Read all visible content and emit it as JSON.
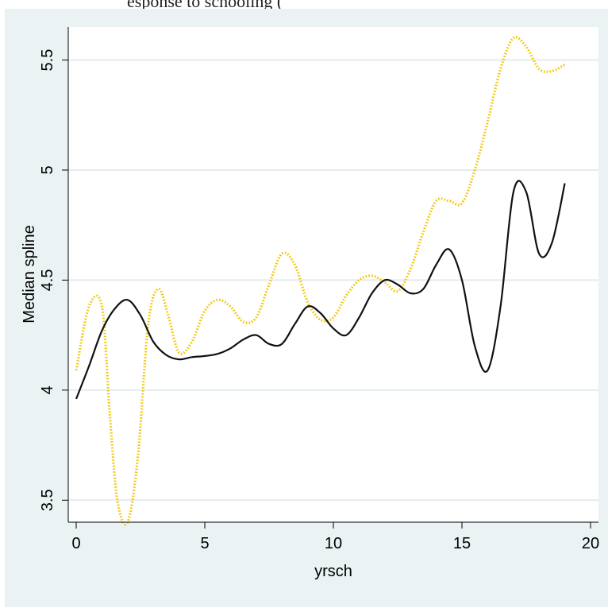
{
  "caption": "esponse to schooling (",
  "chart_data": {
    "type": "line",
    "title": "",
    "xlabel": "yrsch",
    "ylabel": "Median spline",
    "xlim": [
      0,
      20
    ],
    "ylim": [
      3.4,
      5.65
    ],
    "xticks": [
      "0",
      "5",
      "10",
      "15",
      "20"
    ],
    "yticks": [
      "3.5",
      "4",
      "4.5",
      "5",
      "5.5"
    ],
    "grid": true,
    "legend": "none",
    "series": [
      {
        "style": "solid",
        "color": "#111111",
        "x": [
          0,
          0.5,
          1,
          1.5,
          2,
          2.5,
          3,
          3.5,
          4,
          4.5,
          5,
          5.5,
          6,
          6.5,
          7,
          7.5,
          8,
          8.5,
          9,
          9.5,
          10,
          10.5,
          11,
          11.5,
          12,
          12.5,
          13,
          13.5,
          14,
          14.5,
          15,
          15.5,
          16,
          16.5,
          17,
          17.5,
          18,
          18.5,
          19
        ],
        "y": [
          3.96,
          4.11,
          4.27,
          4.37,
          4.41,
          4.34,
          4.22,
          4.16,
          4.14,
          4.15,
          4.155,
          4.165,
          4.19,
          4.23,
          4.25,
          4.21,
          4.21,
          4.3,
          4.38,
          4.35,
          4.28,
          4.25,
          4.33,
          4.44,
          4.5,
          4.48,
          4.44,
          4.46,
          4.57,
          4.64,
          4.5,
          4.2,
          4.09,
          4.38,
          4.9,
          4.9,
          4.62,
          4.67,
          4.94
        ]
      },
      {
        "style": "dotted",
        "color": "#f2c500",
        "x": [
          0,
          0.5,
          1,
          1.3,
          1.6,
          2,
          2.4,
          2.8,
          3.2,
          3.6,
          4,
          4.5,
          5,
          5.5,
          6,
          6.5,
          7,
          7.5,
          8,
          8.5,
          9,
          9.5,
          10,
          10.5,
          11,
          11.5,
          12,
          12.5,
          13,
          13.5,
          14,
          14.5,
          15,
          15.5,
          16,
          16.5,
          17,
          17.5,
          18,
          18.5,
          19
        ],
        "y": [
          4.09,
          4.38,
          4.38,
          3.9,
          3.5,
          3.4,
          3.7,
          4.3,
          4.46,
          4.33,
          4.17,
          4.22,
          4.36,
          4.41,
          4.38,
          4.31,
          4.33,
          4.48,
          4.62,
          4.57,
          4.4,
          4.32,
          4.33,
          4.43,
          4.5,
          4.52,
          4.49,
          4.45,
          4.55,
          4.72,
          4.86,
          4.86,
          4.85,
          5.0,
          5.22,
          5.46,
          5.6,
          5.56,
          5.46,
          5.45,
          5.48
        ]
      }
    ]
  }
}
